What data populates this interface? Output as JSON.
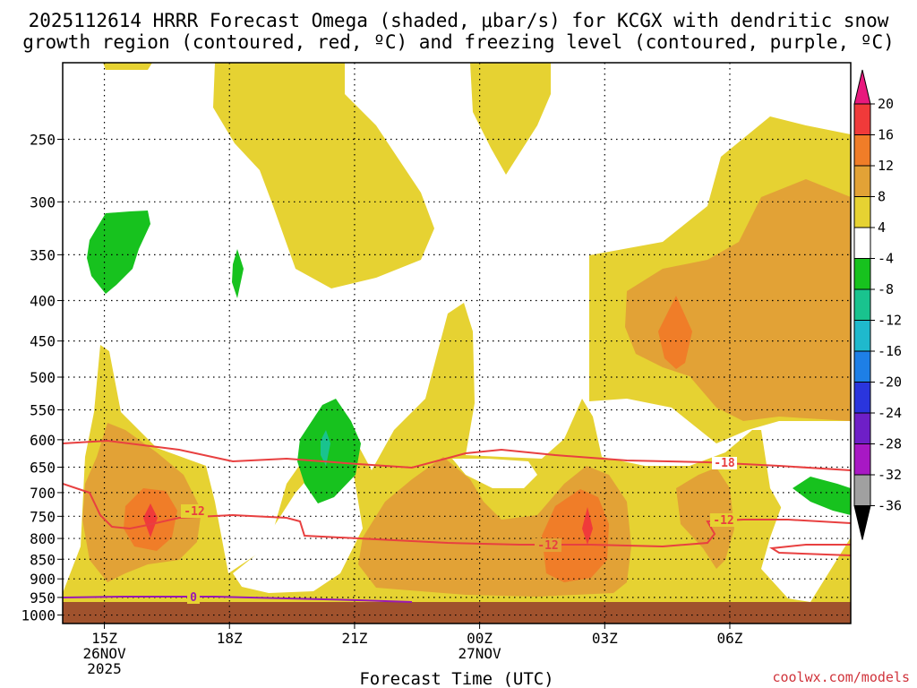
{
  "chart_data": {
    "type": "heatmap",
    "title_line1": "2025112614 HRRR Forecast Omega (shaded, μbar/s) for KCGX with dendritic snow",
    "title_line2": "growth region (contoured, red, ºC) and freezing level (contoured, purple, ºC)",
    "xlabel": "Forecast Time (UTC)",
    "credit": "coolwx.com/models",
    "y_ticks": [
      250,
      300,
      350,
      400,
      450,
      500,
      550,
      600,
      650,
      700,
      750,
      800,
      850,
      900,
      950,
      1000
    ],
    "y_range": [
      200,
      1025
    ],
    "y_scale": "log-pressure",
    "x_ticks": [
      {
        "hour": 1,
        "lines": [
          "15Z",
          "26NOV",
          "2025"
        ]
      },
      {
        "hour": 4,
        "lines": [
          "18Z"
        ]
      },
      {
        "hour": 7,
        "lines": [
          "21Z"
        ]
      },
      {
        "hour": 10,
        "lines": [
          "00Z",
          "27NOV"
        ]
      },
      {
        "hour": 13,
        "lines": [
          "03Z"
        ]
      },
      {
        "hour": 16,
        "lines": [
          "06Z"
        ]
      }
    ],
    "x_range_hours": [
      0.0,
      18.9
    ],
    "colorbar": {
      "levels": [
        20,
        16,
        12,
        8,
        4,
        -4,
        -8,
        -12,
        -16,
        -20,
        -24,
        -28,
        -32,
        -36
      ],
      "colors": [
        "#e8197d",
        "#f03a3a",
        "#f07d28",
        "#e2a236",
        "#e6d232",
        "#ffffff",
        "#17c21e",
        "#19c38e",
        "#1fb9cd",
        "#1e7fe6",
        "#2a35dd",
        "#6e1fc7",
        "#a818c4",
        "#a0a0a0",
        "#000000"
      ]
    },
    "contours": {
      "dendritic": {
        "color": "#e84040",
        "labels": [
          "-12",
          "-12",
          "-12",
          "-18"
        ]
      },
      "freezing": {
        "color": "#9a18b4",
        "labels": [
          "0"
        ]
      }
    },
    "ground_color": "#a0522d",
    "grid": true
  }
}
